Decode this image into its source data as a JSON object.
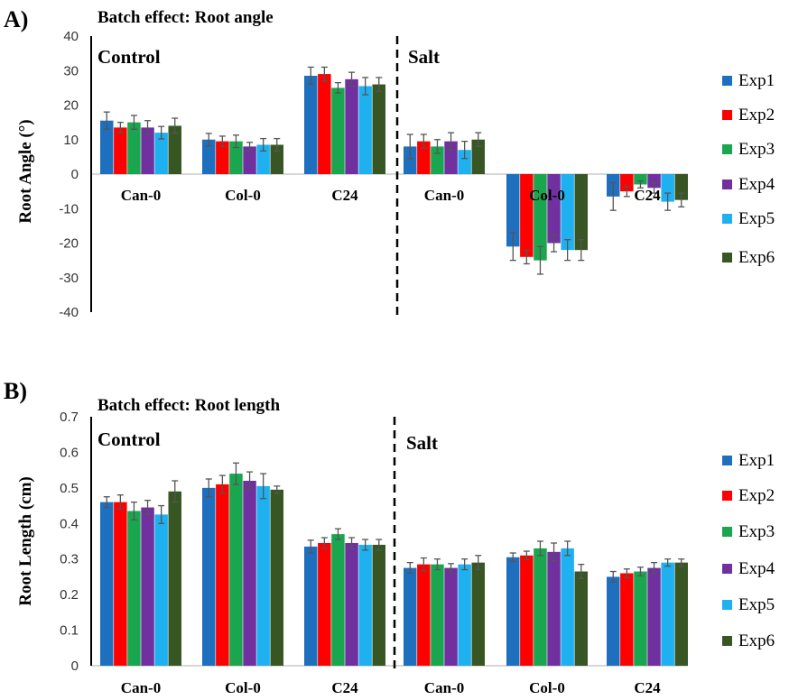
{
  "colors": {
    "series": [
      "#1f6fbf",
      "#ff0000",
      "#1aa64f",
      "#7030a0",
      "#1fb0f0",
      "#375623"
    ],
    "error_bar": "#555555"
  },
  "chart_data": [
    {
      "type": "bar",
      "panel_label": "A)",
      "title": "Batch effect: Root angle",
      "xlabel": "",
      "ylabel": "Root Angle (°)",
      "ylim": [
        -40,
        40
      ],
      "yticks": [
        40,
        30,
        20,
        10,
        0,
        -10,
        -20,
        -30,
        -40
      ],
      "grid": false,
      "legend": "right",
      "sections": [
        "Control",
        "Salt"
      ],
      "categories": [
        "Can-0",
        "Col-0",
        "C24",
        "Can-0",
        "Col-0",
        "C24"
      ],
      "category_section": [
        "Control",
        "Control",
        "Control",
        "Salt",
        "Salt",
        "Salt"
      ],
      "series": [
        {
          "name": "Exp1",
          "values": [
            15.5,
            10,
            28.5,
            8,
            -21,
            -6.5
          ],
          "errors": [
            2.5,
            1.8,
            2.5,
            3.5,
            4.0,
            4.0
          ]
        },
        {
          "name": "Exp2",
          "values": [
            13.5,
            9.5,
            29,
            9.5,
            -24,
            -5
          ],
          "errors": [
            1.5,
            1.5,
            2.0,
            2.0,
            2.0,
            1.5
          ]
        },
        {
          "name": "Exp3",
          "values": [
            15,
            9.5,
            25,
            8,
            -25,
            -3
          ],
          "errors": [
            2.0,
            1.8,
            1.5,
            2.0,
            4.0,
            1.0
          ]
        },
        {
          "name": "Exp4",
          "values": [
            13.5,
            8,
            27.5,
            9.5,
            -20,
            -4
          ],
          "errors": [
            2.0,
            1.2,
            2.0,
            2.5,
            2.5,
            1.5
          ]
        },
        {
          "name": "Exp5",
          "values": [
            12,
            8.5,
            25.5,
            7,
            -22,
            -8
          ],
          "errors": [
            1.8,
            1.8,
            2.5,
            2.5,
            3.0,
            2.5
          ]
        },
        {
          "name": "Exp6",
          "values": [
            14,
            8.5,
            26,
            10,
            -22,
            -7.5
          ],
          "errors": [
            2.2,
            1.8,
            2.0,
            2.0,
            3.0,
            2.0
          ]
        }
      ]
    },
    {
      "type": "bar",
      "panel_label": "B)",
      "title": "Batch effect: Root length",
      "xlabel": "",
      "ylabel": "Root Length (cm)",
      "ylim": [
        0,
        0.7
      ],
      "yticks": [
        0.7,
        0.6,
        0.5,
        0.4,
        0.3,
        0.2,
        0.1,
        0
      ],
      "grid": false,
      "legend": "right",
      "sections": [
        "Control",
        "Salt"
      ],
      "categories": [
        "Can-0",
        "Col-0",
        "C24",
        "Can-0",
        "Col-0",
        "C24"
      ],
      "category_section": [
        "Control",
        "Control",
        "Control",
        "Salt",
        "Salt",
        "Salt"
      ],
      "series": [
        {
          "name": "Exp1",
          "values": [
            0.46,
            0.5,
            0.335,
            0.275,
            0.305,
            0.25
          ],
          "errors": [
            0.015,
            0.025,
            0.018,
            0.015,
            0.012,
            0.015
          ]
        },
        {
          "name": "Exp2",
          "values": [
            0.46,
            0.51,
            0.345,
            0.285,
            0.31,
            0.26
          ],
          "errors": [
            0.02,
            0.025,
            0.015,
            0.018,
            0.012,
            0.012
          ]
        },
        {
          "name": "Exp3",
          "values": [
            0.435,
            0.54,
            0.37,
            0.285,
            0.33,
            0.265
          ],
          "errors": [
            0.025,
            0.03,
            0.015,
            0.015,
            0.02,
            0.012
          ]
        },
        {
          "name": "Exp4",
          "values": [
            0.445,
            0.52,
            0.345,
            0.275,
            0.32,
            0.275
          ],
          "errors": [
            0.02,
            0.025,
            0.015,
            0.012,
            0.025,
            0.015
          ]
        },
        {
          "name": "Exp5",
          "values": [
            0.425,
            0.505,
            0.34,
            0.285,
            0.33,
            0.29
          ],
          "errors": [
            0.025,
            0.035,
            0.015,
            0.015,
            0.02,
            0.01
          ]
        },
        {
          "name": "Exp6",
          "values": [
            0.49,
            0.495,
            0.34,
            0.29,
            0.265,
            0.29
          ],
          "errors": [
            0.03,
            0.01,
            0.015,
            0.02,
            0.02,
            0.01
          ]
        }
      ]
    }
  ]
}
